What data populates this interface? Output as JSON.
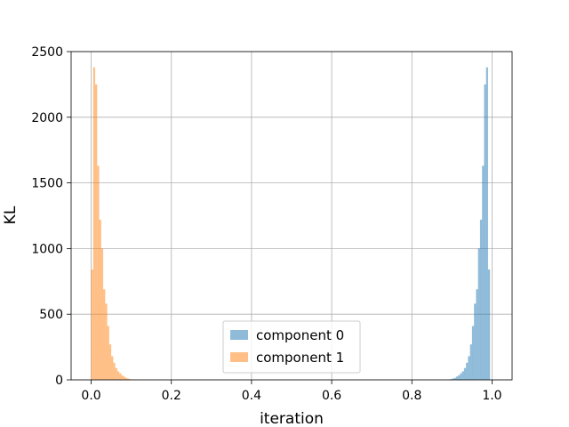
{
  "chart_data": {
    "type": "histogram",
    "title": "",
    "xlabel": "iteration",
    "ylabel": "KL",
    "xlim": [
      -0.05,
      1.05
    ],
    "ylim": [
      0,
      2500
    ],
    "xticks": [
      "0.0",
      "0.2",
      "0.4",
      "0.6",
      "0.8",
      "1.0"
    ],
    "yticks": [
      "0",
      "500",
      "1000",
      "1500",
      "2000",
      "2500"
    ],
    "grid": true,
    "legend_position": "lower-center",
    "bin_width": 0.005,
    "series": [
      {
        "name": "component 0",
        "color": "#1f77b4",
        "bins": [
          {
            "x": 0.895,
            "count": 5
          },
          {
            "x": 0.9,
            "count": 10
          },
          {
            "x": 0.905,
            "count": 15
          },
          {
            "x": 0.91,
            "count": 25
          },
          {
            "x": 0.915,
            "count": 35
          },
          {
            "x": 0.92,
            "count": 50
          },
          {
            "x": 0.925,
            "count": 65
          },
          {
            "x": 0.93,
            "count": 90
          },
          {
            "x": 0.935,
            "count": 130
          },
          {
            "x": 0.94,
            "count": 180
          },
          {
            "x": 0.945,
            "count": 270
          },
          {
            "x": 0.95,
            "count": 410
          },
          {
            "x": 0.955,
            "count": 580
          },
          {
            "x": 0.96,
            "count": 690
          },
          {
            "x": 0.965,
            "count": 1000
          },
          {
            "x": 0.97,
            "count": 1220
          },
          {
            "x": 0.975,
            "count": 1630
          },
          {
            "x": 0.98,
            "count": 2250
          },
          {
            "x": 0.985,
            "count": 2380
          },
          {
            "x": 0.99,
            "count": 840
          }
        ]
      },
      {
        "name": "component 1",
        "color": "#ff7f0e",
        "bins": [
          {
            "x": 0.0,
            "count": 840
          },
          {
            "x": 0.005,
            "count": 2380
          },
          {
            "x": 0.01,
            "count": 2250
          },
          {
            "x": 0.015,
            "count": 1630
          },
          {
            "x": 0.02,
            "count": 1220
          },
          {
            "x": 0.025,
            "count": 1000
          },
          {
            "x": 0.03,
            "count": 690
          },
          {
            "x": 0.035,
            "count": 580
          },
          {
            "x": 0.04,
            "count": 410
          },
          {
            "x": 0.045,
            "count": 270
          },
          {
            "x": 0.05,
            "count": 180
          },
          {
            "x": 0.055,
            "count": 130
          },
          {
            "x": 0.06,
            "count": 90
          },
          {
            "x": 0.065,
            "count": 65
          },
          {
            "x": 0.07,
            "count": 50
          },
          {
            "x": 0.075,
            "count": 35
          },
          {
            "x": 0.08,
            "count": 25
          },
          {
            "x": 0.085,
            "count": 15
          },
          {
            "x": 0.09,
            "count": 10
          },
          {
            "x": 0.095,
            "count": 5
          }
        ]
      }
    ]
  }
}
